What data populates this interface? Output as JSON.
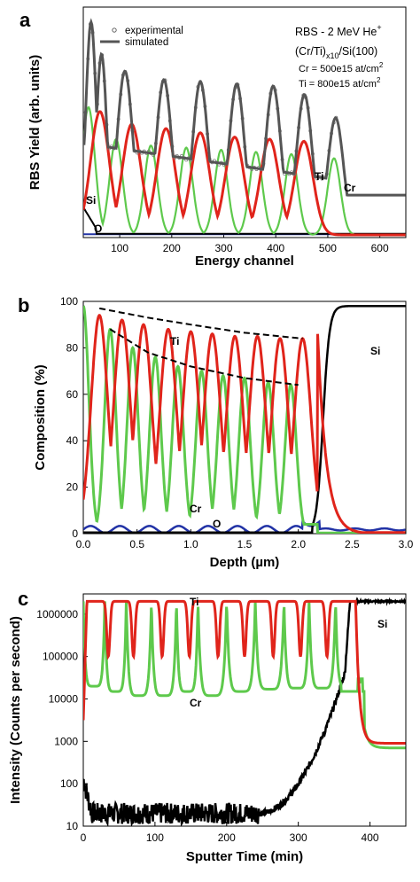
{
  "chart_data": [
    {
      "panel": "a",
      "type": "line",
      "xlabel": "Energy channel",
      "ylabel": "RBS Yield (arb. units)",
      "xlim": [
        30,
        650
      ],
      "xticks": [
        "100",
        "200",
        "300",
        "400",
        "500",
        "600"
      ],
      "grid": false,
      "legend": {
        "placement": "top-left",
        "entries": [
          "experimental",
          "simulated"
        ]
      },
      "annotations": {
        "title": "RBS - 2 MeV He",
        "title_sup": "+",
        "sample_a": "(Cr/Ti)",
        "sample_sub": "x10",
        "sample_b": "/Si(100)",
        "cr_dose": "Cr = 500e15 at/cm",
        "ti_dose": "Ti = 800e15 at/cm",
        "dose_sup": "2"
      },
      "series": [
        {
          "name": "Ti",
          "color": "#e0241b",
          "peak_channels": [
            62,
            123,
            189,
            255,
            321,
            388,
            454
          ],
          "peak_heights": [
            0.58,
            0.52,
            0.5,
            0.48,
            0.46,
            0.45,
            0.44
          ]
        },
        {
          "name": "Cr",
          "color": "#5ec94c",
          "peak_channels": [
            40,
            93,
            160,
            228,
            295,
            362,
            430,
            512
          ],
          "peak_heights": [
            0.6,
            0.45,
            0.42,
            0.41,
            0.4,
            0.39,
            0.38,
            0.36
          ]
        },
        {
          "name": "Si",
          "color": "#000000"
        },
        {
          "name": "O",
          "color": "#2233a6"
        }
      ],
      "simulated_peak_channels": [
        45,
        65,
        110,
        185,
        255,
        325,
        395,
        455,
        515
      ],
      "simulated_peak_heights": [
        1.0,
        0.85,
        0.77,
        0.73,
        0.72,
        0.71,
        0.7,
        0.66,
        0.55
      ],
      "labels": {
        "si": "Si",
        "o": "O",
        "ti": "Ti",
        "cr": "Cr"
      }
    },
    {
      "panel": "b",
      "type": "line",
      "xlabel": "Depth (µm)",
      "ylabel": "Composition (%)",
      "xlim": [
        0,
        3.0
      ],
      "ylim": [
        0,
        100
      ],
      "xticks": [
        "0.0",
        "0.5",
        "1.0",
        "1.5",
        "2.0",
        "2.5",
        "3.0"
      ],
      "yticks": [
        "0",
        "20",
        "40",
        "60",
        "80",
        "100"
      ],
      "grid": false,
      "series": [
        {
          "name": "Ti",
          "color": "#e0241b",
          "peak_depths": [
            0.15,
            0.36,
            0.56,
            0.79,
            1.0,
            1.2,
            1.41,
            1.62,
            1.83,
            2.04
          ],
          "peak_values": [
            94,
            92,
            90,
            88,
            87,
            86,
            85,
            85,
            84,
            84
          ],
          "min_values": [
            3,
            3,
            4,
            4,
            5,
            5,
            6,
            6,
            6,
            6
          ]
        },
        {
          "name": "Cr",
          "color": "#5ec94c",
          "peak_depths": [
            0.0,
            0.25,
            0.46,
            0.67,
            0.88,
            1.1,
            1.3,
            1.5,
            1.72,
            1.93
          ],
          "peak_values": [
            98,
            88,
            80,
            76,
            72,
            70,
            68,
            67,
            65,
            64
          ],
          "min_values": [
            5,
            7,
            8,
            9,
            10,
            11,
            12,
            12,
            12,
            13
          ]
        },
        {
          "name": "Si",
          "color": "#000000",
          "level": 98,
          "interface_depth": 2.18
        },
        {
          "name": "O",
          "color": "#2233a6",
          "level": 2
        }
      ],
      "envelopes": [
        {
          "name": "Ti envelope",
          "style": "dashed",
          "points": [
            [
              0.15,
              97
            ],
            [
              0.6,
              93
            ],
            [
              1.0,
              90
            ],
            [
              1.5,
              86.5
            ],
            [
              2.04,
              84
            ]
          ]
        },
        {
          "name": "Cr envelope",
          "style": "dashed",
          "points": [
            [
              0.25,
              88
            ],
            [
              0.6,
              78
            ],
            [
              1.0,
              72
            ],
            [
              1.5,
              67
            ],
            [
              2.0,
              64
            ]
          ]
        }
      ],
      "labels": {
        "ti": "Ti",
        "cr": "Cr",
        "o": "O",
        "si": "Si"
      }
    },
    {
      "panel": "c",
      "type": "line",
      "xlabel": "Sputter Time (min)",
      "ylabel": "Intensity (Counts per second)",
      "xlim": [
        0,
        450
      ],
      "ylim": [
        10,
        3000000
      ],
      "yscale": "log",
      "xticks": [
        "0",
        "100",
        "200",
        "300",
        "400"
      ],
      "yticks": [
        "10",
        "100",
        "1000",
        "10000",
        "100000",
        "1000000"
      ],
      "grid": false,
      "series": [
        {
          "name": "Ti",
          "color": "#e0241b",
          "level": 2000000,
          "dip_times": [
            35,
            70,
            110,
            148,
            188,
            225,
            265,
            303,
            340
          ],
          "dip_value": 100000,
          "end_level": 900
        },
        {
          "name": "Cr",
          "color": "#5ec94c",
          "peak_times": [
            0,
            30,
            60,
            95,
            130,
            160,
            200,
            240,
            280,
            315,
            352,
            385
          ],
          "peak_value": 2000000,
          "min_values": [
            20000,
            15000,
            12000,
            12000,
            15000,
            12000,
            15000,
            17000,
            18000,
            18000,
            20000
          ],
          "end_level": 700
        },
        {
          "name": "Si",
          "color": "#000000",
          "start_level": 20,
          "end_level": 2000000,
          "interface_time": 380
        }
      ],
      "labels": {
        "ti": "Ti",
        "cr": "Cr",
        "si": "Si"
      }
    }
  ]
}
